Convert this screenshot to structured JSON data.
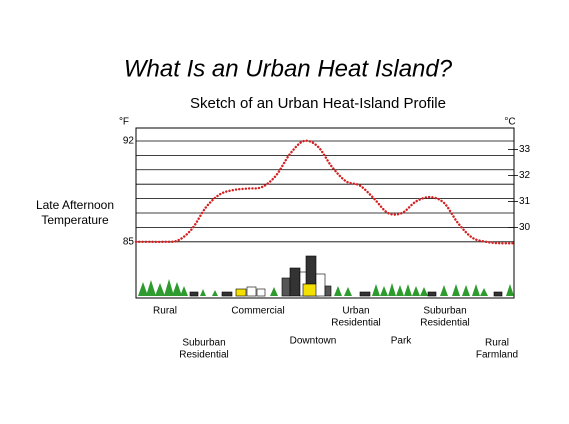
{
  "chart_data": {
    "type": "line",
    "title": "What Is an Urban Heat Island?",
    "subtitle": "Sketch of an Urban Heat-Island Profile",
    "y_unit": "°F",
    "y2_unit": "°C",
    "y_label": [
      "Late Afternoon",
      "Temperature"
    ],
    "values": [
      85.0,
      85.0,
      85.0,
      85.1,
      85.9,
      87.4,
      88.3,
      88.6,
      88.7,
      88.8,
      89.6,
      91.1,
      92.0,
      91.6,
      90.2,
      89.2,
      88.9,
      88.0,
      87.0,
      87.0,
      87.8,
      88.1,
      87.7,
      86.3,
      85.3,
      85.0,
      84.9,
      84.9
    ],
    "color": "#d42020",
    "ylim": [
      81.1,
      92.9
    ],
    "yticks": [
      85,
      92
    ],
    "grid_lines": [
      85,
      86,
      87,
      88,
      89,
      90,
      91,
      92
    ],
    "y2lim": [
      27.28,
      33.83
    ],
    "y2ticks": [
      30,
      31,
      32,
      33
    ],
    "zones": [
      [
        "Rural"
      ],
      [
        "Suburban",
        "Residential"
      ],
      [
        "Commercial"
      ],
      [
        "Downtown"
      ],
      [
        "Urban",
        "Residential"
      ],
      [
        "Park"
      ],
      [
        "Suburban",
        "Residential"
      ],
      [
        "Rural",
        "Farmland"
      ]
    ]
  }
}
